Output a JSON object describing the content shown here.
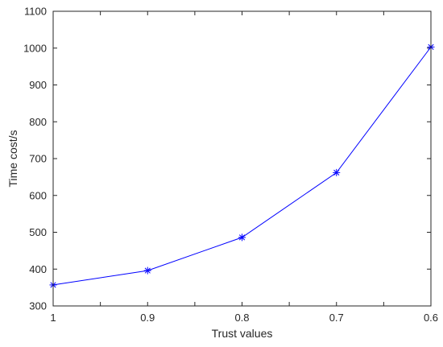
{
  "chart_data": {
    "type": "line",
    "title": "",
    "xlabel": "Trust values",
    "ylabel": "Time cost/s",
    "x_direction": "reversed",
    "xlim": [
      0.6,
      1
    ],
    "ylim": [
      300,
      1100
    ],
    "x_ticks": [
      1,
      0.9,
      0.8,
      0.7,
      0.6
    ],
    "x_tick_labels": [
      "1",
      "0.9",
      "0.8",
      "0.7",
      "0.6"
    ],
    "y_ticks": [
      300,
      400,
      500,
      600,
      700,
      800,
      900,
      1000,
      1100
    ],
    "y_tick_labels": [
      "300",
      "400",
      "500",
      "600",
      "700",
      "800",
      "900",
      "1000",
      "1100"
    ],
    "grid": false,
    "legend": "none",
    "series": [
      {
        "x": [
          1,
          0.9,
          0.8,
          0.7,
          0.6
        ],
        "values": [
          357,
          396,
          486,
          662,
          1003
        ],
        "color": "#0000ff",
        "marker": "asterisk"
      }
    ]
  }
}
